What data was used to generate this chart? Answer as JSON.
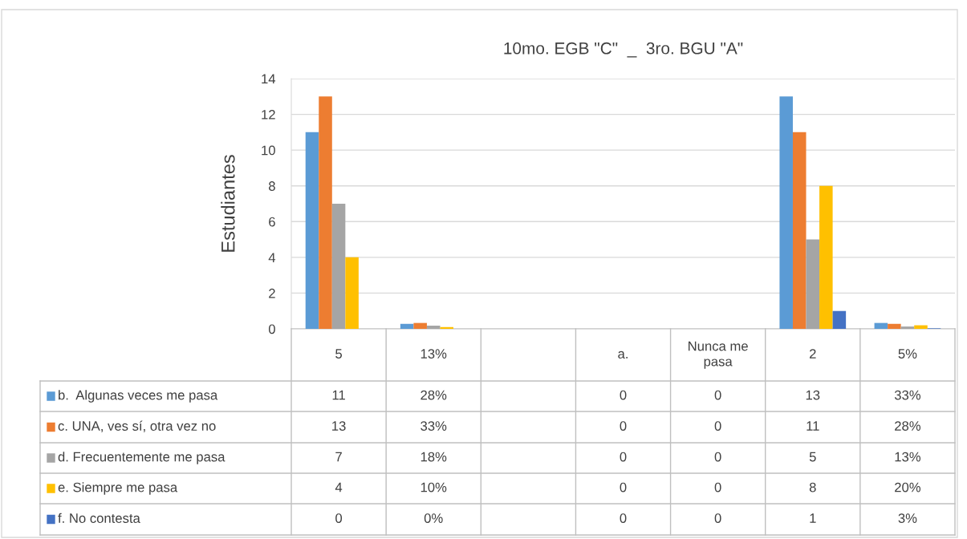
{
  "chart_data": {
    "type": "bar",
    "title": "10mo. EGB \"C\"  _  3ro. BGU \"A\"",
    "ylabel": "Estudiantes",
    "categories": [
      "5",
      "13%",
      null,
      "a.",
      "Nunca me\npasa",
      "2",
      "5%"
    ],
    "series": [
      {
        "name": "b.  Algunas veces me pasa",
        "color": "#5b9bd5",
        "values": [
          11,
          0.28,
          null,
          0,
          0,
          13,
          0.33
        ],
        "value_labels": [
          "11",
          "28%",
          null,
          "0",
          "0",
          "13",
          "33%"
        ]
      },
      {
        "name": "c. UNA, ves sí, otra vez no",
        "color": "#ed7d31",
        "values": [
          13,
          0.33,
          null,
          0,
          0,
          11,
          0.28
        ],
        "value_labels": [
          "13",
          "33%",
          null,
          "0",
          "0",
          "11",
          "28%"
        ]
      },
      {
        "name": "d. Frecuentemente me pasa",
        "color": "#a5a5a5",
        "values": [
          7,
          0.18,
          null,
          0,
          0,
          5,
          0.13
        ],
        "value_labels": [
          "7",
          "18%",
          null,
          "0",
          "0",
          "5",
          "13%"
        ]
      },
      {
        "name": "e. Siempre me pasa",
        "color": "#ffc000",
        "values": [
          4,
          0.1,
          null,
          0,
          0,
          8,
          0.2
        ],
        "value_labels": [
          "4",
          "10%",
          null,
          "0",
          "0",
          "8",
          "20%"
        ]
      },
      {
        "name": "f. No contesta",
        "color": "#4472c4",
        "values": [
          0,
          0,
          null,
          0,
          0,
          1,
          0.03
        ],
        "value_labels": [
          "0",
          "0%",
          null,
          "0",
          "0",
          "1",
          "3%"
        ]
      }
    ],
    "ylim": [
      0,
      14
    ],
    "yticks": [
      0,
      2,
      4,
      6,
      8,
      10,
      12,
      14
    ],
    "grid": "y",
    "legend": "bottom"
  }
}
